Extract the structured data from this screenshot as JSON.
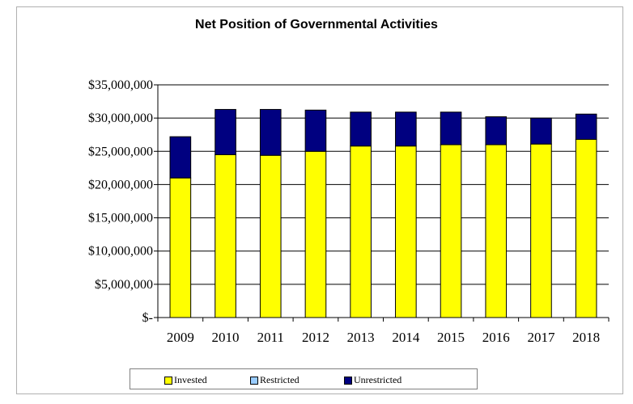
{
  "chart_data": {
    "type": "bar",
    "stacked": true,
    "title": "Net Position of Governmental Activities",
    "categories": [
      "2009",
      "2010",
      "2011",
      "2012",
      "2013",
      "2014",
      "2015",
      "2016",
      "2017",
      "2018"
    ],
    "series": [
      {
        "name": "Invested",
        "color": "#ffff00",
        "values": [
          21000000,
          24500000,
          24400000,
          25000000,
          25800000,
          25800000,
          26000000,
          26000000,
          26100000,
          26800000
        ]
      },
      {
        "name": "Restricted",
        "color": "#99ccff",
        "values": [
          0,
          0,
          0,
          0,
          0,
          0,
          0,
          0,
          0,
          0
        ]
      },
      {
        "name": "Unrestricted",
        "color": "#000080",
        "values": [
          6200000,
          6800000,
          6900000,
          6200000,
          5100000,
          5100000,
          4900000,
          4200000,
          3900000,
          3800000
        ]
      }
    ],
    "ylim": [
      0,
      35000000
    ],
    "yticks": [
      0,
      5000000,
      10000000,
      15000000,
      20000000,
      25000000,
      30000000,
      35000000
    ],
    "ytick_labels": [
      "$-",
      "$5,000,000",
      "$10,000,000",
      "$15,000,000",
      "$20,000,000",
      "$25,000,000",
      "$30,000,000",
      "$35,000,000"
    ],
    "grid": true,
    "legend_position": "bottom"
  }
}
